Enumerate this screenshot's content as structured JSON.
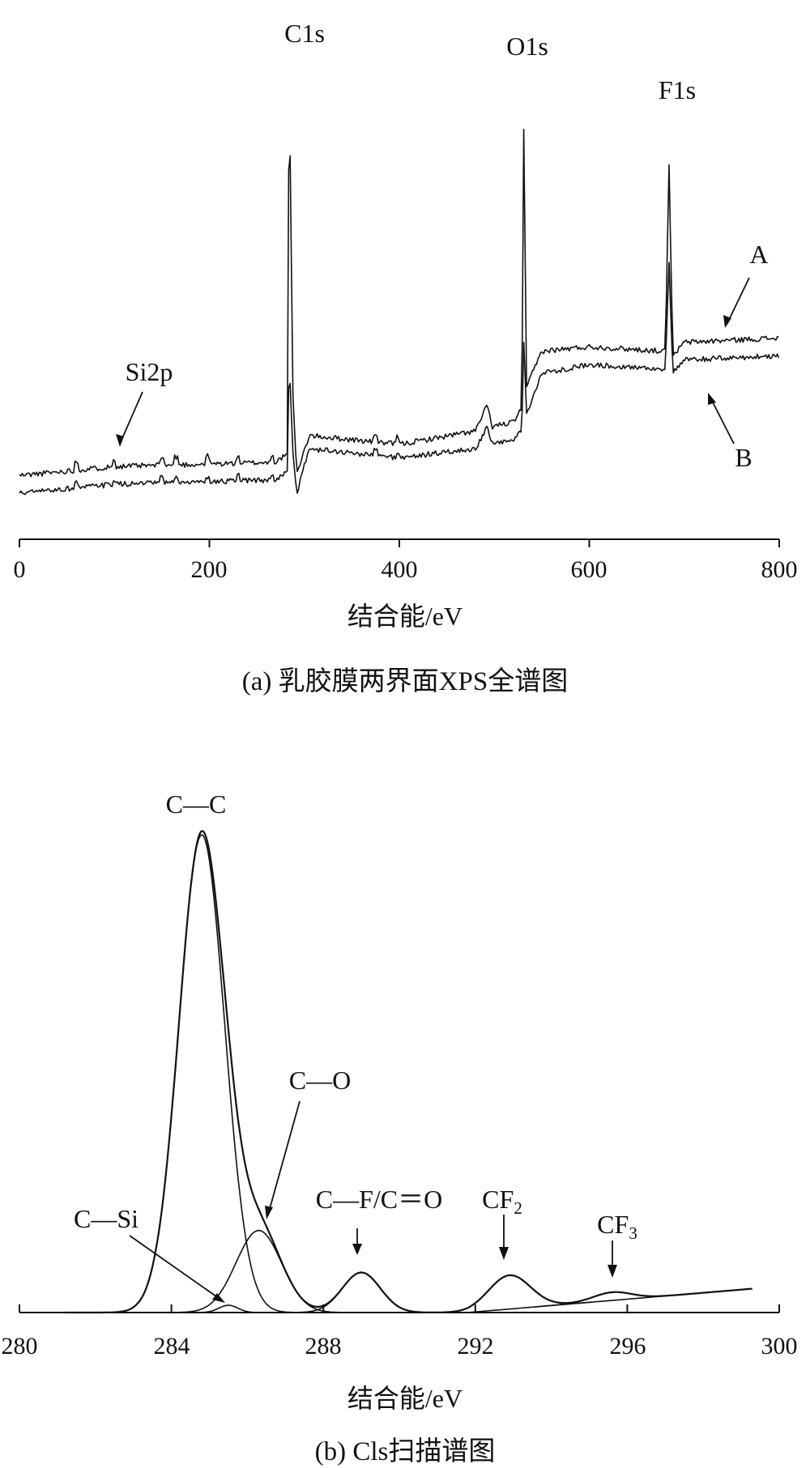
{
  "chart_data": [
    {
      "type": "line",
      "caption": "(a) 乳胶膜两界面XPS全谱图",
      "xlabel": "结合能/eV",
      "ylabel": "",
      "xlim": [
        0,
        800
      ],
      "xticks": [
        0,
        200,
        400,
        600,
        800
      ],
      "grid": false,
      "y_axis_shown": false,
      "series": [
        {
          "name": "A",
          "points": [
            [
              0,
              0.1
            ],
            [
              100,
              0.12
            ],
            [
              270,
              0.13
            ],
            [
              282,
              0.15
            ],
            [
              284,
              1.0
            ],
            [
              288,
              0.28
            ],
            [
              292,
              0.1
            ],
            [
              305,
              0.19
            ],
            [
              400,
              0.17
            ],
            [
              480,
              0.2
            ],
            [
              493,
              0.26
            ],
            [
              497,
              0.21
            ],
            [
              520,
              0.22
            ],
            [
              529,
              0.25
            ],
            [
              531,
              0.88
            ],
            [
              534,
              0.3
            ],
            [
              550,
              0.38
            ],
            [
              600,
              0.39
            ],
            [
              680,
              0.38
            ],
            [
              684,
              0.8
            ],
            [
              688,
              0.37
            ],
            [
              700,
              0.4
            ],
            [
              800,
              0.41
            ]
          ]
        },
        {
          "name": "B",
          "points": [
            [
              0,
              0.06
            ],
            [
              100,
              0.08
            ],
            [
              270,
              0.09
            ],
            [
              282,
              0.11
            ],
            [
              284,
              0.36
            ],
            [
              288,
              0.15
            ],
            [
              292,
              0.06
            ],
            [
              305,
              0.16
            ],
            [
              400,
              0.14
            ],
            [
              480,
              0.16
            ],
            [
              493,
              0.21
            ],
            [
              497,
              0.17
            ],
            [
              520,
              0.18
            ],
            [
              529,
              0.2
            ],
            [
              531,
              0.4
            ],
            [
              534,
              0.24
            ],
            [
              550,
              0.33
            ],
            [
              600,
              0.35
            ],
            [
              680,
              0.34
            ],
            [
              684,
              0.58
            ],
            [
              688,
              0.33
            ],
            [
              700,
              0.36
            ],
            [
              800,
              0.37
            ]
          ]
        }
      ],
      "annotations": [
        "C1s",
        "O1s",
        "F1s",
        "Si2p",
        "A",
        "B"
      ]
    },
    {
      "type": "line",
      "caption": "(b) Cls扫描谱图",
      "xlabel": "结合能/eV",
      "ylabel": "",
      "xlim": [
        280,
        300
      ],
      "xticks": [
        280,
        284,
        288,
        292,
        296,
        300
      ],
      "grid": false,
      "y_axis_shown": false,
      "components": [
        {
          "name": "C—C",
          "center": 284.8,
          "height": 0.99,
          "width": 0.6
        },
        {
          "name": "C—O",
          "center": 286.3,
          "height": 0.17,
          "width": 0.6
        },
        {
          "name": "C—Si",
          "center": 285.5,
          "height": 0.015,
          "width": 0.25
        },
        {
          "name": "C—F/C＝O",
          "center": 289.0,
          "height": 0.083,
          "width": 0.5
        },
        {
          "name": "CF2",
          "center": 292.9,
          "height": 0.07,
          "width": 0.55
        },
        {
          "name": "CF3",
          "center": 295.6,
          "height": 0.017,
          "width": 0.5
        }
      ],
      "annotations": [
        "C—C",
        "C—O",
        "C—Si",
        "C—F/C＝O",
        "CF2",
        "CF3"
      ]
    }
  ],
  "labels": {
    "a": {
      "ticks": [
        "0",
        "200",
        "400",
        "600",
        "800"
      ],
      "xlabel": "结合能/eV",
      "caption": "(a) 乳胶膜两界面XPS全谱图",
      "c1s": "C1s",
      "o1s": "O1s",
      "f1s": "F1s",
      "si2p": "Si2p",
      "series_a": "A",
      "series_b": "B"
    },
    "b": {
      "ticks": [
        "280",
        "284",
        "288",
        "292",
        "296",
        "300"
      ],
      "xlabel": "结合能/eV",
      "caption": "(b) Cls扫描谱图",
      "cc": "C—C",
      "co": "C—O",
      "csi": "C—Si",
      "cf_co": "C—F/C＝O",
      "cf2_base": "CF",
      "cf2_sub": "2",
      "cf3_base": "CF",
      "cf3_sub": "3"
    }
  }
}
